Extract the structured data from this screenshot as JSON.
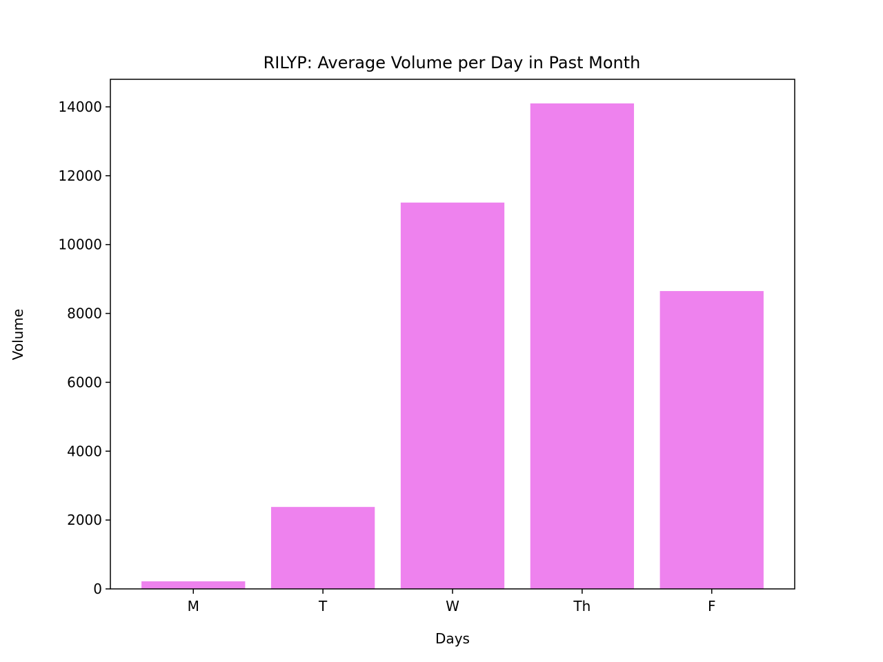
{
  "chart_data": {
    "type": "bar",
    "title": "RILYP: Average Volume per Day in Past Month",
    "xlabel": "Days",
    "ylabel": "Volume",
    "categories": [
      "M",
      "T",
      "W",
      "Th",
      "F"
    ],
    "values": [
      220,
      2380,
      11220,
      14100,
      8650
    ],
    "ylim": [
      0,
      14800
    ],
    "yticks": [
      0,
      2000,
      4000,
      6000,
      8000,
      10000,
      12000,
      14000
    ],
    "bar_color": "#ee82ee",
    "grid": false,
    "legend": "none"
  }
}
